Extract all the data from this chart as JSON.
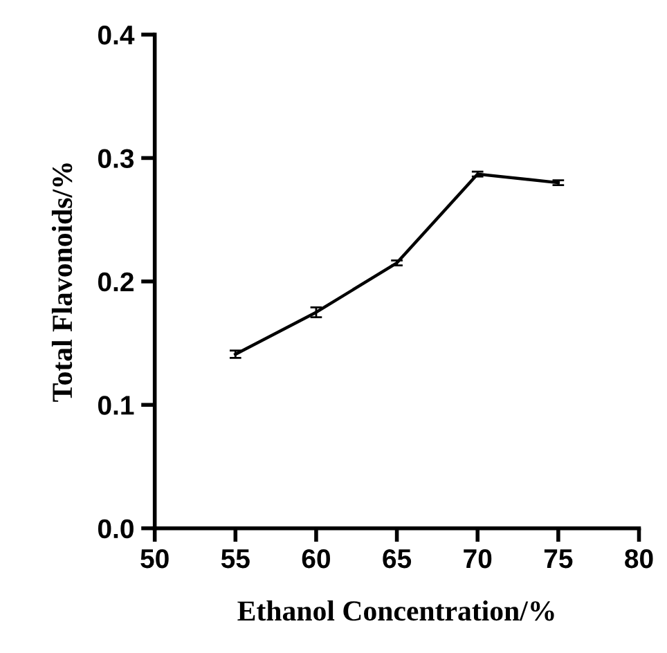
{
  "chart_data": {
    "type": "line",
    "xlabel": "Ethanol Concentration/%",
    "ylabel": "Total Flavonoids/%",
    "x": [
      55,
      60,
      65,
      70,
      75
    ],
    "series": [
      {
        "color": "#000000",
        "values": [
          0.141,
          0.175,
          0.215,
          0.287,
          0.28
        ],
        "errors": [
          0.003,
          0.004,
          0.002,
          0.002,
          0.002
        ]
      }
    ],
    "xlim": [
      50,
      80
    ],
    "xticks": [
      50,
      55,
      60,
      65,
      70,
      75,
      80
    ],
    "ylim": [
      0,
      0.4
    ],
    "yticks": [
      {
        "value": 0,
        "label": "0.0"
      },
      0.1,
      0.2,
      0.3,
      0.4
    ],
    "grid": false,
    "legend": false,
    "marker": "none",
    "line_style": "solid"
  }
}
